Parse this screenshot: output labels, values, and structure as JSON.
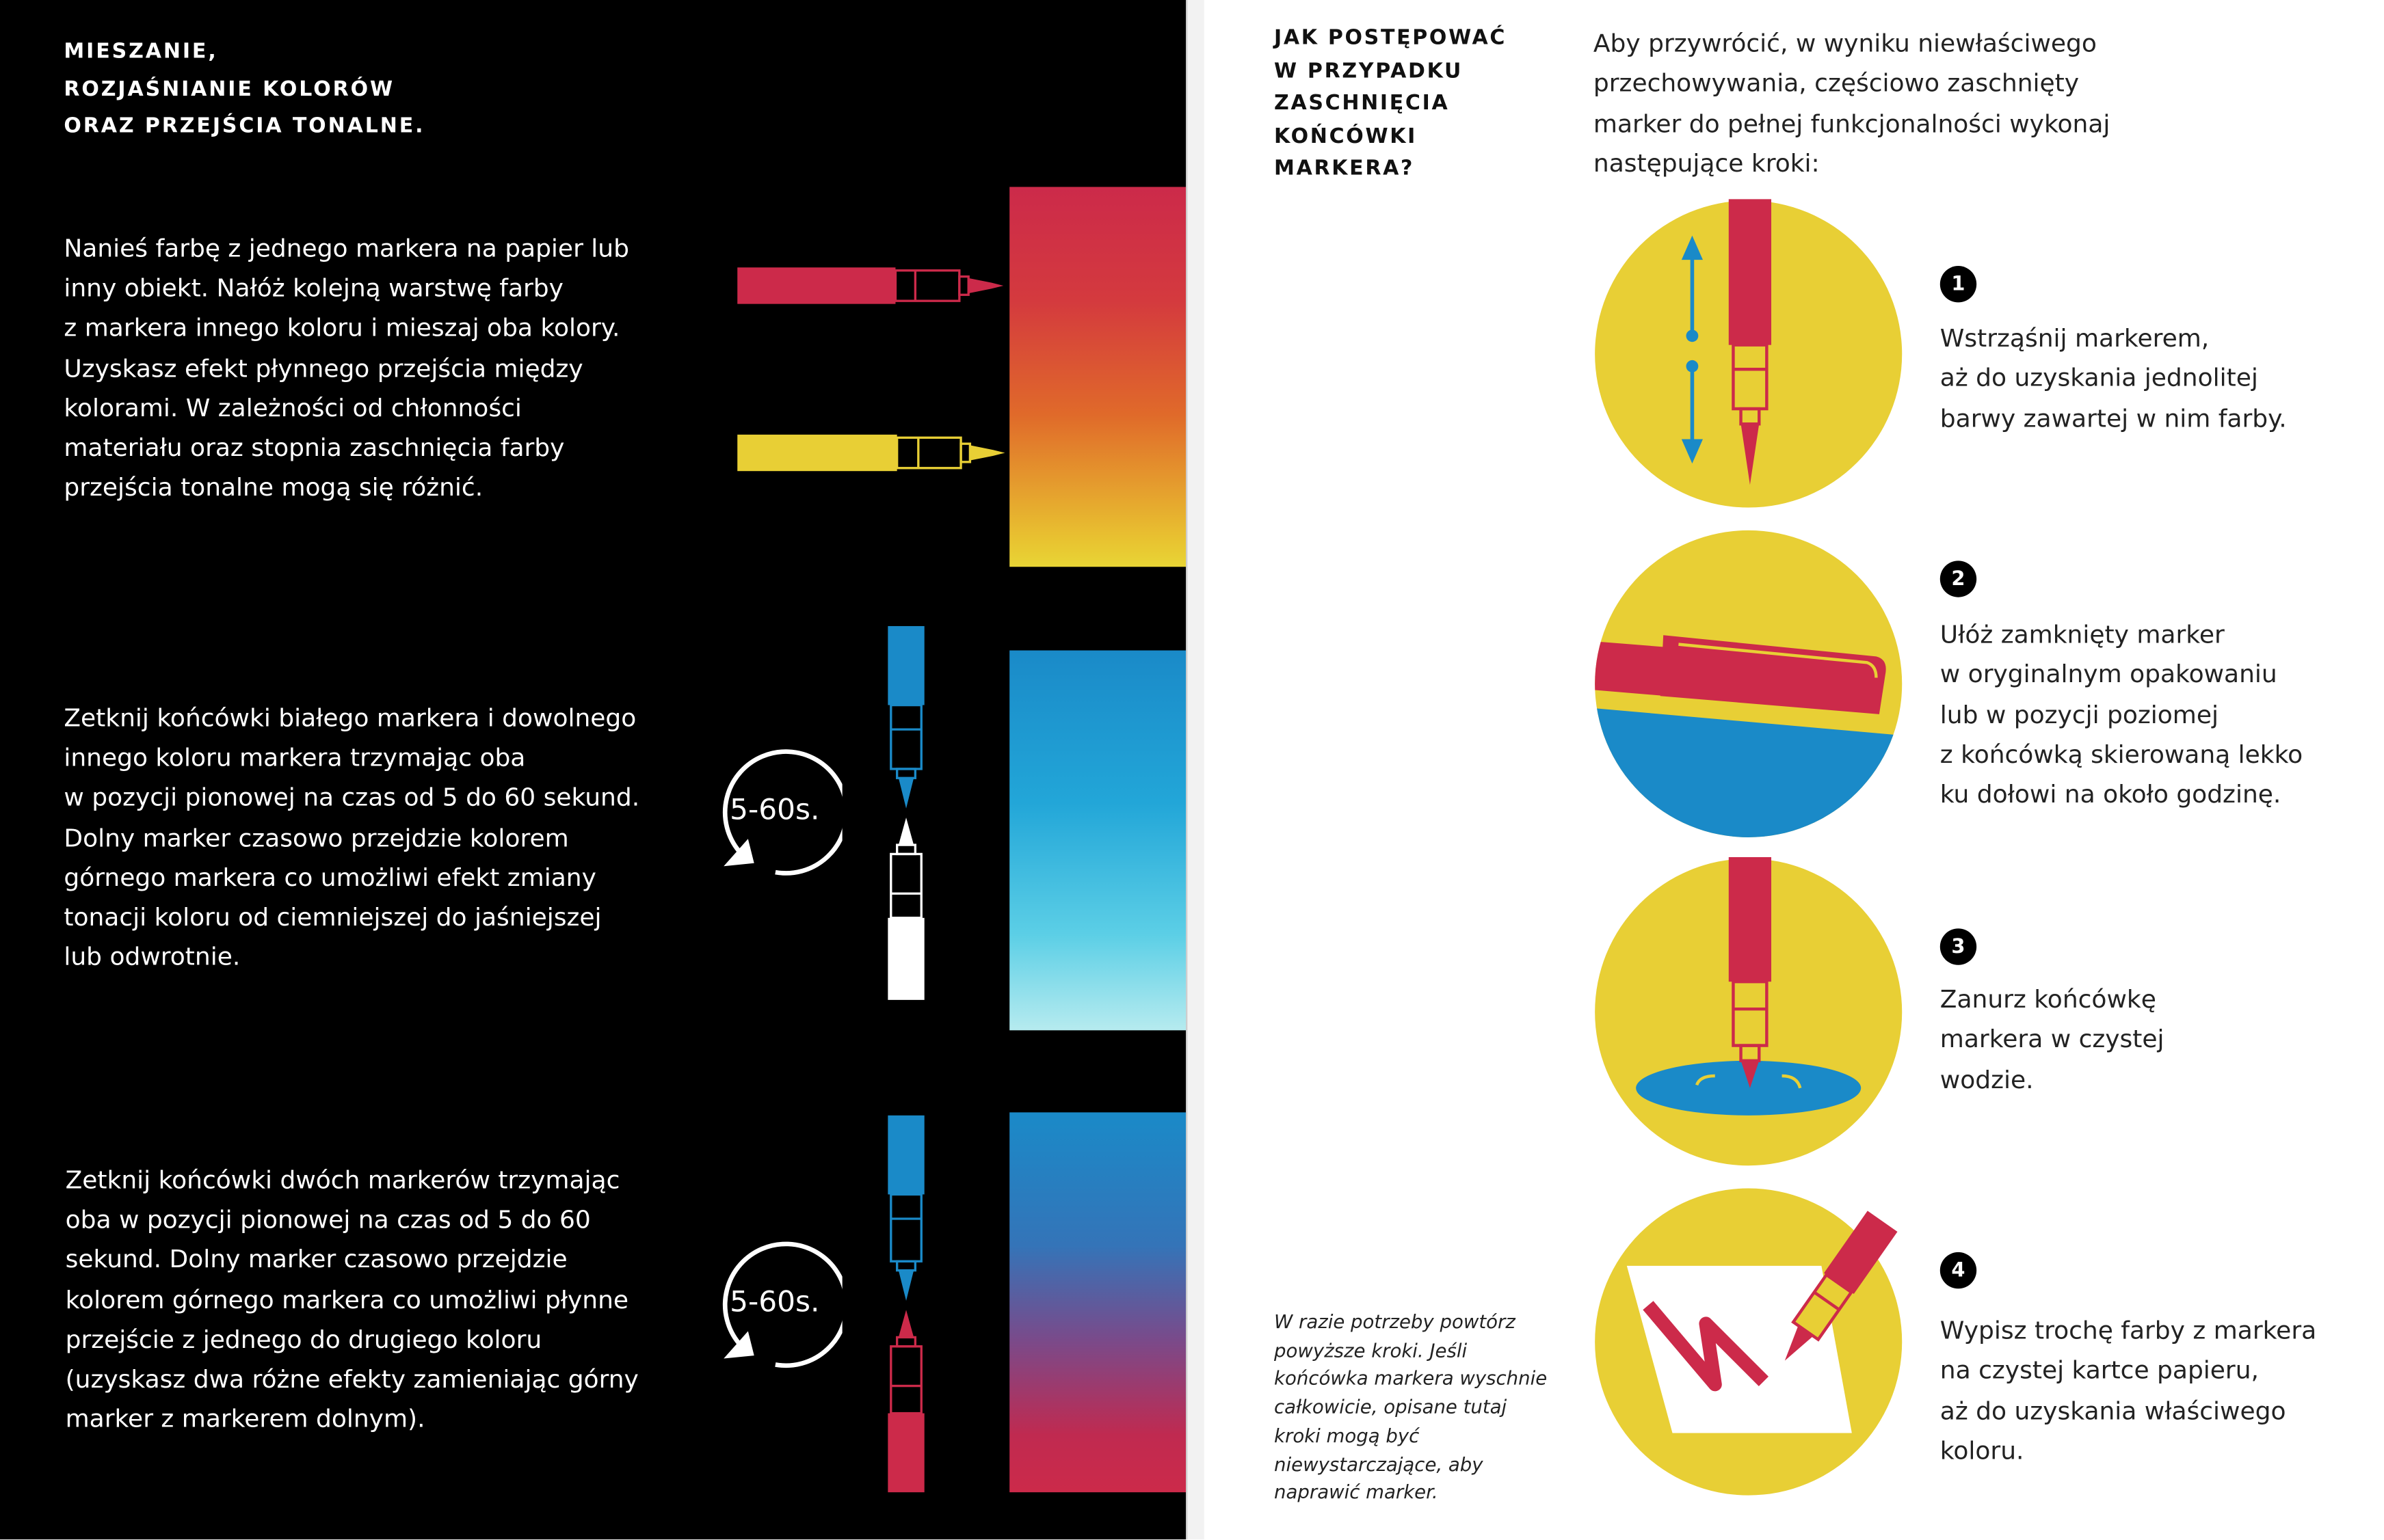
{
  "colors": {
    "red": "#cc2a4a",
    "yellow": "#e8cf35",
    "blue": "#1a8ac8",
    "black": "#000000"
  },
  "left": {
    "heading": [
      "MIESZANIE,",
      "ROZJAŚNIANIE KOLORÓW",
      "ORAZ PRZEJŚCIA TONALNE."
    ],
    "sections": [
      {
        "text": "Nanieś farbę z jednego markera na papier lub\ninny obiekt. Nałóż kolejną warstwę farby\nz markera innego koloru i mieszaj oba kolory.\nUzyskasz efekt płynnego przejścia między\nkolorami. W zależności od chłonności\nmateriału oraz stopnia zaschnięcia farby\nprzejścia tonalne mogą się różnić."
      },
      {
        "text": "Zetknij końcówki białego markera i dowolnego\ninnego koloru markera trzymając oba\nw pozycji pionowej na czas od 5 do 60 sekund.\nDolny marker czasowo przejdzie kolorem\ngórnego markera co umożliwi efekt zmiany\ntonacji koloru od ciemniejszej do jaśniejszej\nlub odwrotnie.",
        "timer": "5-60s."
      },
      {
        "text": "Zetknij końcówki dwóch markerów trzymając\noba w pozycji pionowej na czas od 5 do 60\nsekund. Dolny marker czasowo przejdzie\nkolorem górnego markera co umożliwi płynne\nprzejście z jednego do drugiego koloru\n(uzyskasz dwa różne efekty zamieniając górny\nmarker z markerem dolnym).",
        "timer": "5-60s."
      }
    ]
  },
  "right": {
    "heading": "JAK POSTĘPOWAĆ\nW PRZYPADKU\nZASCHNIĘCIA\nKOŃCÓWKI\nMARKERA?",
    "intro": "Aby przywrócić, w wyniku niewłaściwego\nprzechowywania, częściowo zaschnięty\nmarker do pełnej funkcjonalności wykonaj\nnastępujące kroki:",
    "steps": [
      {
        "number": "1",
        "text": "Wstrząśnij markerem,\naż do uzyskania jednolitej\nbarwy zawartej w nim farby.",
        "icon": "shake-marker-icon"
      },
      {
        "number": "2",
        "text": "Ułóż zamknięty marker\nw oryginalnym opakowaniu\nlub w pozycji poziomej\nz końcówką skierowaną lekko\nku dołowi na około godzinę.",
        "icon": "marker-horizontal-icon"
      },
      {
        "number": "3",
        "text": "Zanurz końcówkę\nmarkera w czystej\nwodzie.",
        "icon": "marker-in-water-icon"
      },
      {
        "number": "4",
        "text": "Wypisz trochę farby z markera\nna czystej kartce papieru,\naż do uzyskania właściwego\nkoloru.",
        "icon": "marker-writing-icon"
      }
    ],
    "note": "W razie potrzeby powtórz\npowyższe kroki. Jeśli\nkońcówka markera wyschnie\ncałkowicie, opisane tutaj\nkroki mogą być\nniewystarczające, aby\nnaprawić marker."
  }
}
